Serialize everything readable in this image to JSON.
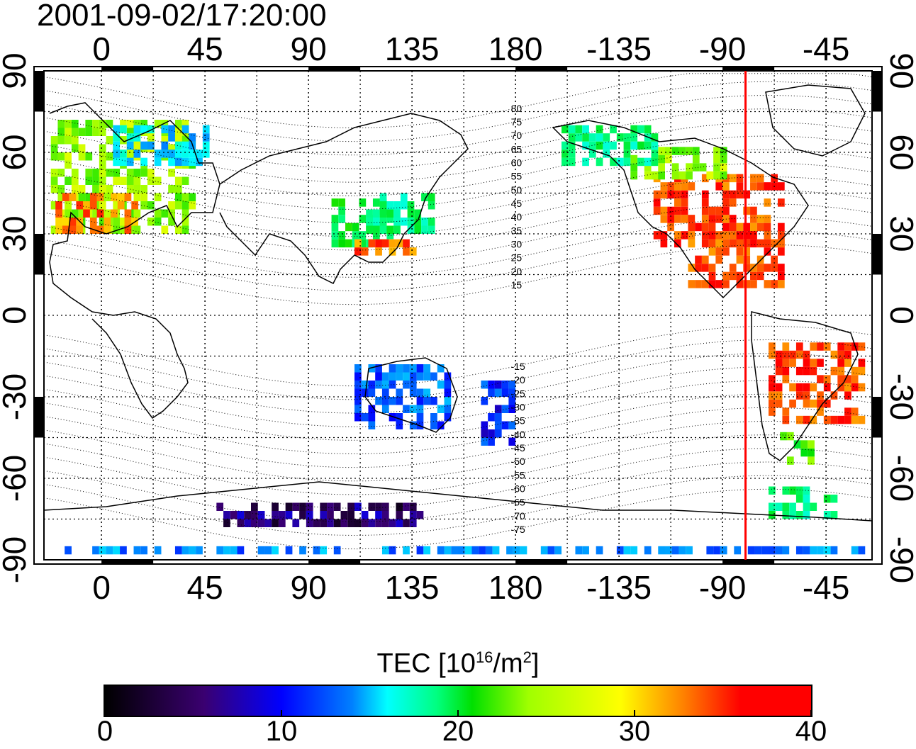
{
  "timestamp": "2001-09-02/17:20:00",
  "map": {
    "x_ticks": [
      "0",
      "45",
      "90",
      "135",
      "180",
      "-135",
      "-90",
      "-45"
    ],
    "x_tick_values": [
      0,
      45,
      90,
      135,
      180,
      225,
      270,
      315
    ],
    "y_ticks": [
      "90",
      "60",
      "30",
      "0",
      "-30",
      "-60",
      "-90"
    ],
    "y_tick_values": [
      90,
      60,
      30,
      0,
      -30,
      -60,
      -90
    ],
    "lon_range": [
      -25,
      335
    ],
    "lat_range": [
      -90,
      90
    ],
    "red_meridian_lon": -80,
    "red_meridian_color": "#ff0000",
    "contour_labels": [
      "80",
      "75",
      "70",
      "65",
      "60",
      "55",
      "50",
      "45",
      "40",
      "35",
      "30",
      "25",
      "20",
      "15",
      "-15",
      "-20",
      "-25",
      "-30",
      "-35",
      "-40",
      "-45",
      "-50",
      "-55",
      "-60",
      "-65",
      "-70",
      "-75"
    ]
  },
  "colorbar": {
    "title_prefix": "TEC  [10",
    "title_exp1": "16",
    "title_mid": "/m",
    "title_exp2": "2",
    "title_suffix": "]",
    "ticks": [
      "0",
      "10",
      "20",
      "30",
      "40"
    ],
    "tick_values": [
      0,
      10,
      20,
      30,
      40
    ],
    "range": [
      0,
      40
    ],
    "colors": [
      "#000000",
      "#3a0070",
      "#0000ff",
      "#0080ff",
      "#00ffff",
      "#00ff80",
      "#00e000",
      "#a0ff00",
      "#ffff00",
      "#ff8000",
      "#ff0000"
    ]
  },
  "tec_regions": [
    {
      "lon_min": -22,
      "lon_max": 40,
      "lat_min": 30,
      "lat_max": 72,
      "tec": 28
    },
    {
      "lon_min": -20,
      "lon_max": 15,
      "lat_min": 30,
      "lat_max": 45,
      "tec": 36
    },
    {
      "lon_min": 5,
      "lon_max": 45,
      "lat_min": 55,
      "lat_max": 70,
      "tec": 15
    },
    {
      "lon_min": 100,
      "lon_max": 125,
      "lat_min": 25,
      "lat_max": 42,
      "tec": 22
    },
    {
      "lon_min": 110,
      "lon_max": 135,
      "lat_min": 22,
      "lat_max": 28,
      "tec": 37
    },
    {
      "lon_min": 115,
      "lon_max": 145,
      "lat_min": 30,
      "lat_max": 45,
      "tec": 20
    },
    {
      "lon_min": 240,
      "lon_max": 295,
      "lat_min": 25,
      "lat_max": 50,
      "tec": 38
    },
    {
      "lon_min": 255,
      "lon_max": 295,
      "lat_min": 10,
      "lat_max": 30,
      "tec": 38
    },
    {
      "lon_min": 230,
      "lon_max": 270,
      "lat_min": 50,
      "lat_max": 62,
      "tec": 28
    },
    {
      "lon_min": 200,
      "lon_max": 240,
      "lat_min": 55,
      "lat_max": 70,
      "tec": 20
    },
    {
      "lon_min": 290,
      "lon_max": 330,
      "lat_min": -40,
      "lat_max": -10,
      "tec": 38
    },
    {
      "lon_min": 110,
      "lon_max": 150,
      "lat_min": -42,
      "lat_max": -20,
      "tec": 11
    },
    {
      "lon_min": 165,
      "lon_max": 180,
      "lat_min": -48,
      "lat_max": -25,
      "tec": 9
    },
    {
      "lon_min": 50,
      "lon_max": 140,
      "lat_min": -78,
      "lat_max": -70,
      "tec": 4
    },
    {
      "lon_min": -22,
      "lon_max": 335,
      "lat_min": -88,
      "lat_max": -86,
      "tec": 12
    },
    {
      "lon_min": 295,
      "lon_max": 310,
      "lat_min": -55,
      "lat_max": -45,
      "tec": 25
    },
    {
      "lon_min": 290,
      "lon_max": 320,
      "lat_min": -75,
      "lat_max": -65,
      "tec": 20
    }
  ]
}
